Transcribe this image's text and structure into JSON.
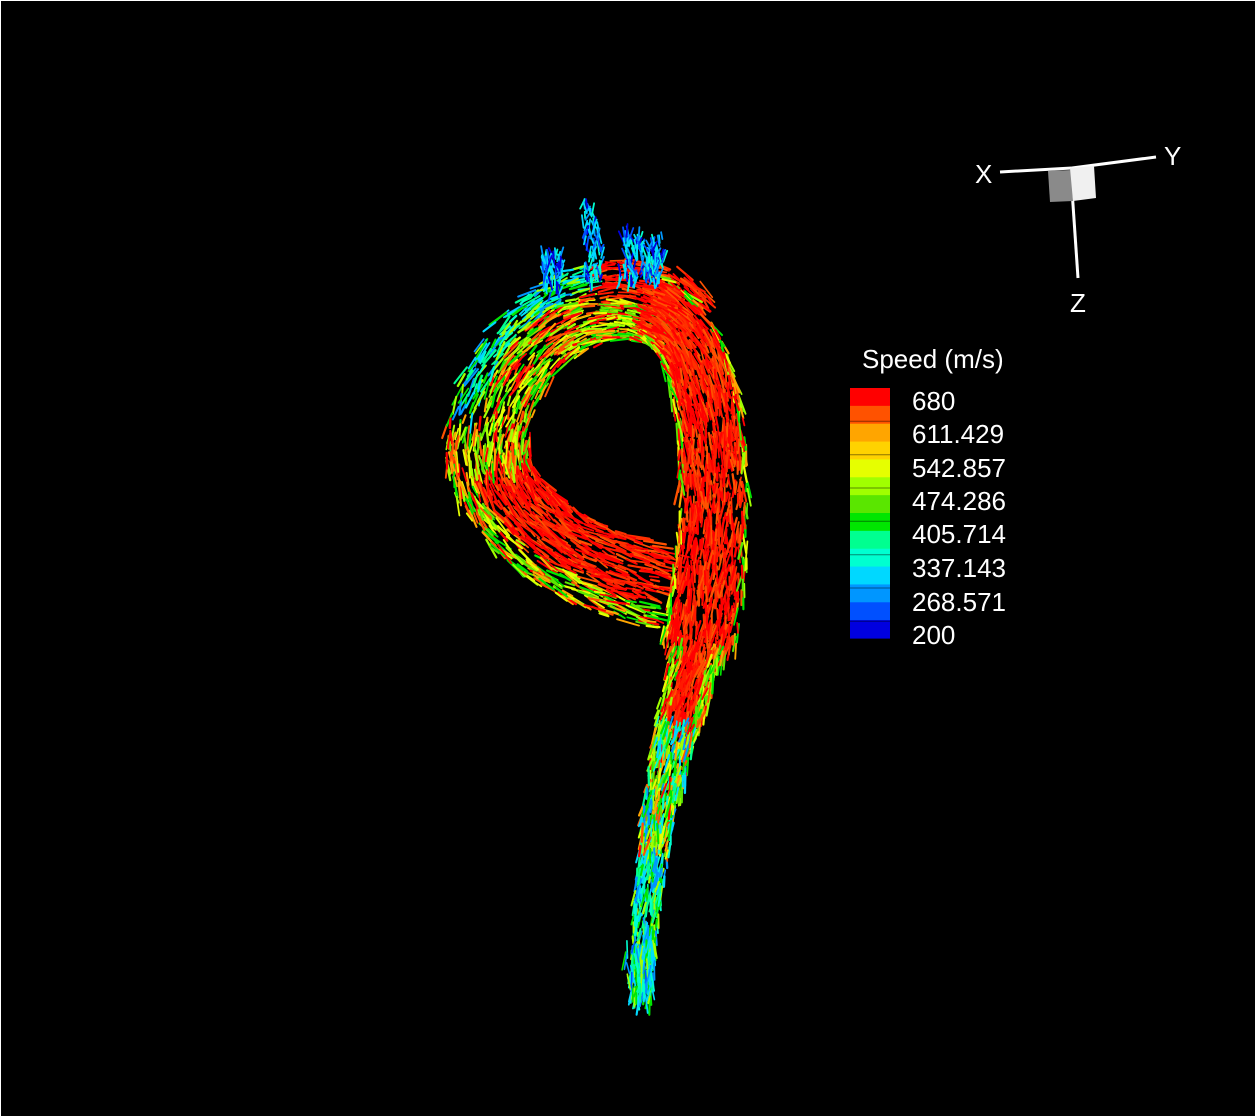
{
  "legend": {
    "title": "Speed (m/s)",
    "labels": [
      "680",
      "611.429",
      "542.857",
      "474.286",
      "405.714",
      "337.143",
      "268.571",
      "200"
    ],
    "colors": [
      "#ff0000",
      "#ff5200",
      "#ffa500",
      "#ffd200",
      "#e6ff00",
      "#a0ff00",
      "#5ae600",
      "#00e600",
      "#00ff90",
      "#00ffd0",
      "#00d8ff",
      "#0096ff",
      "#0050ff",
      "#0000e0"
    ]
  },
  "axes": {
    "x": "X",
    "y": "Y",
    "z": "Z"
  }
}
